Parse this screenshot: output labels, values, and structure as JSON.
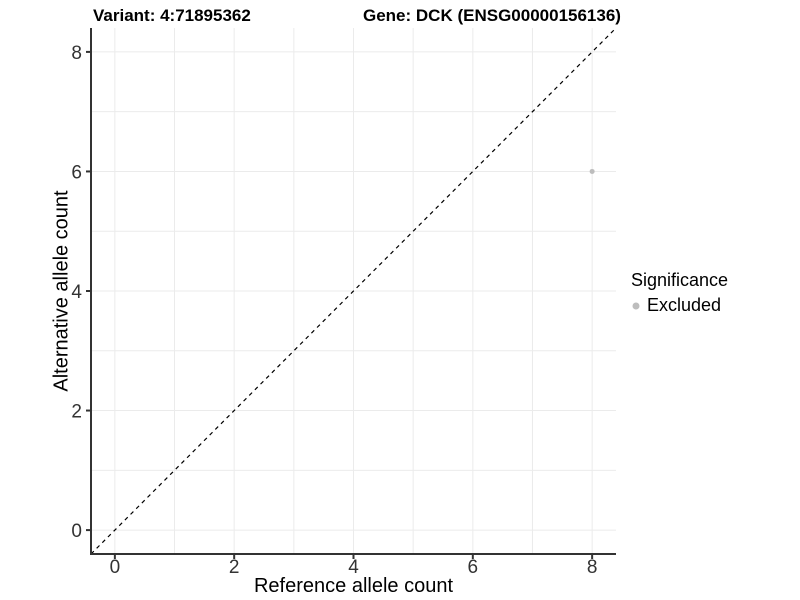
{
  "chart_data": {
    "type": "scatter",
    "titles": {
      "left": "Variant: 4:71895362",
      "right": "Gene: DCK (ENSG00000156136)"
    },
    "xlabel": "Reference allele count",
    "ylabel": "Alternative allele count",
    "xlim": [
      -0.4,
      8.4
    ],
    "ylim": [
      -0.4,
      8.4
    ],
    "x_ticks": [
      0,
      2,
      4,
      6,
      8
    ],
    "y_ticks": [
      0,
      2,
      4,
      6,
      8
    ],
    "grid": true,
    "grid_every": 1,
    "points": [
      {
        "x": 8,
        "y": 6,
        "series": "Excluded",
        "color": "#bdbdbd"
      }
    ],
    "reference_line": {
      "type": "identity",
      "slope": 1,
      "intercept": 0,
      "style": "dashed",
      "color": "#000000"
    },
    "legend": {
      "title": "Significance",
      "position": "right",
      "items": [
        {
          "label": "Excluded",
          "color": "#bdbdbd",
          "marker": "circle"
        }
      ]
    }
  },
  "style": {
    "background": "#ffffff",
    "axis_color": "#333333",
    "tick_label_color": "#333333",
    "grid_color": "#ebebeb",
    "point_color": "#bdbdbd",
    "reference_line_color": "#000000"
  }
}
